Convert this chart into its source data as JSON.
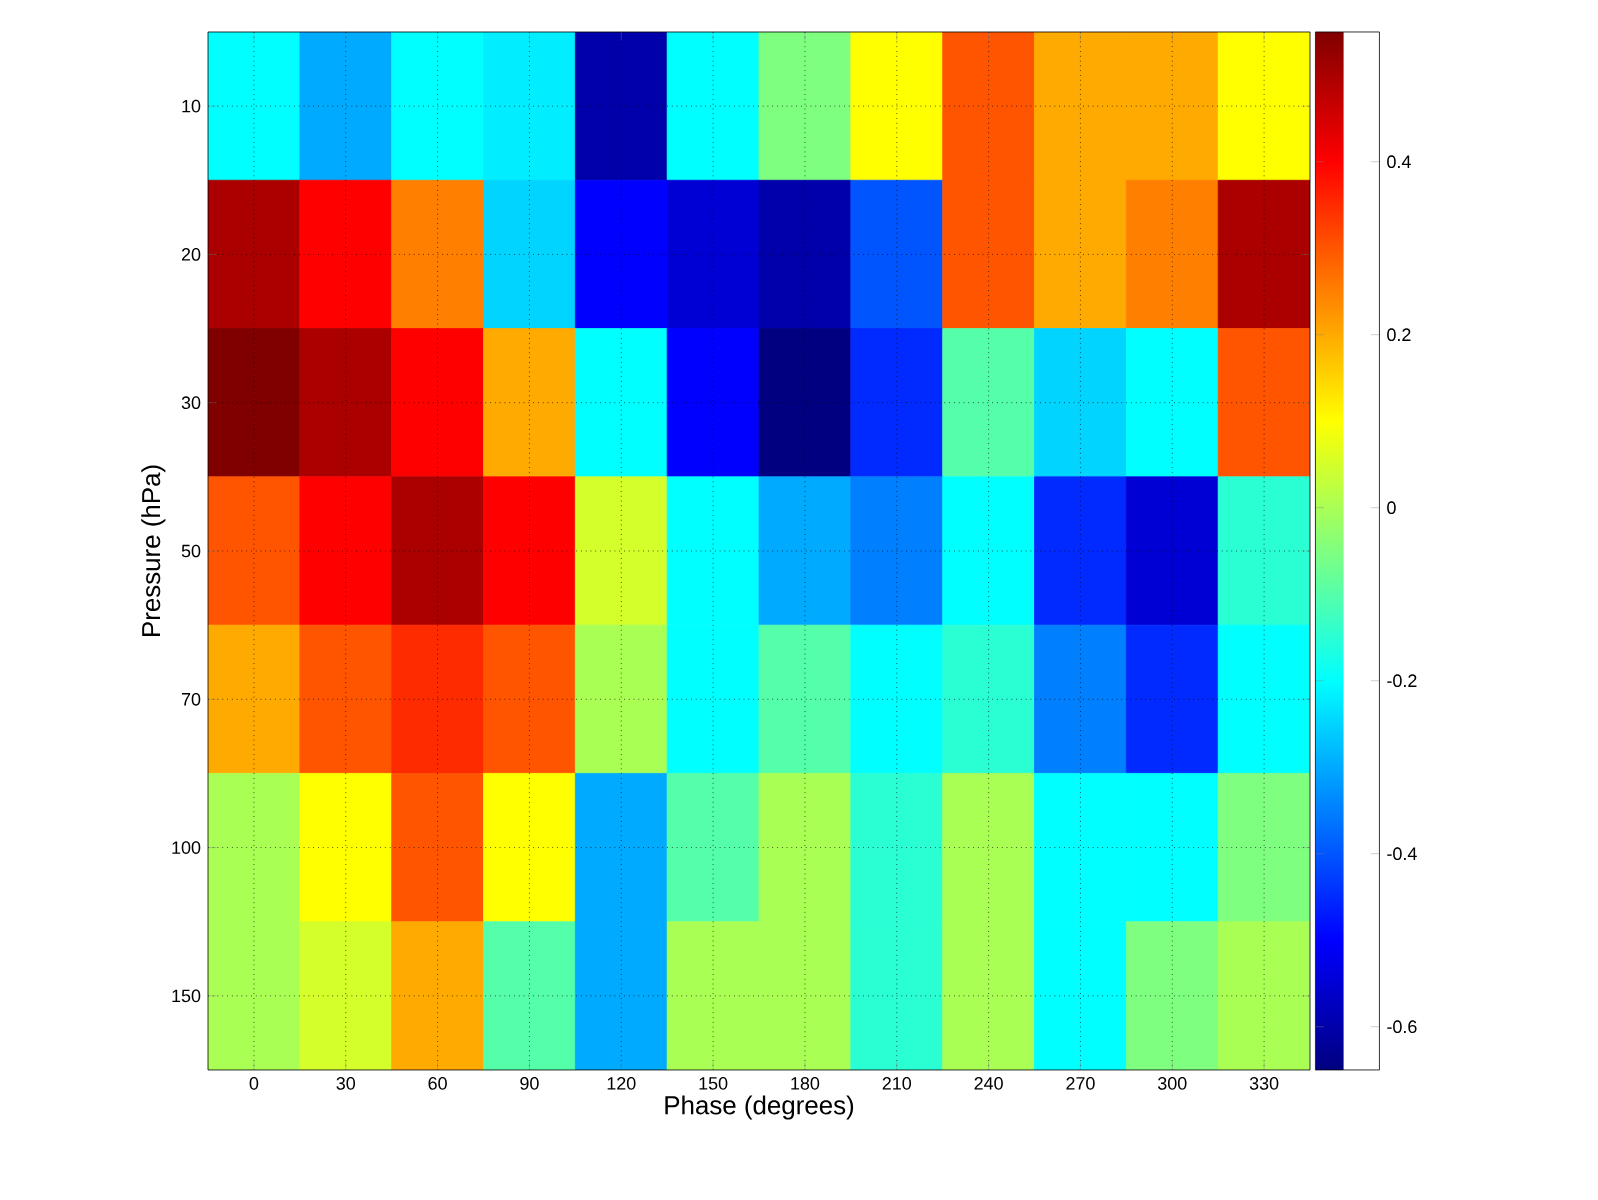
{
  "chart_data": {
    "type": "heatmap",
    "xlabel": "Phase (degrees)",
    "ylabel": "Pressure (hPa)",
    "categories": [
      "0",
      "30",
      "60",
      "90",
      "120",
      "150",
      "180",
      "210",
      "240",
      "270",
      "300",
      "330"
    ],
    "y_categories": [
      "10",
      "20",
      "30",
      "50",
      "70",
      "100",
      "150"
    ],
    "cells": [
      [
        -0.2,
        -0.3,
        -0.2,
        -0.22,
        -0.6,
        -0.2,
        -0.05,
        0.1,
        0.3,
        0.2,
        0.2,
        0.1
      ],
      [
        0.5,
        0.4,
        0.25,
        -0.25,
        -0.5,
        -0.55,
        -0.6,
        -0.4,
        0.3,
        0.2,
        0.25,
        0.5
      ],
      [
        0.55,
        0.5,
        0.4,
        0.2,
        -0.2,
        -0.5,
        -0.65,
        -0.45,
        -0.1,
        -0.25,
        -0.2,
        0.3
      ],
      [
        0.3,
        0.4,
        0.5,
        0.4,
        0.05,
        -0.2,
        -0.3,
        -0.35,
        -0.2,
        -0.45,
        -0.55,
        -0.15
      ],
      [
        0.2,
        0.3,
        0.35,
        0.3,
        0.0,
        -0.2,
        -0.1,
        -0.2,
        -0.15,
        -0.35,
        -0.45,
        -0.2
      ],
      [
        0.0,
        0.1,
        0.3,
        0.1,
        -0.3,
        -0.1,
        0.0,
        -0.15,
        0.0,
        -0.2,
        -0.2,
        -0.05
      ],
      [
        0.0,
        0.05,
        0.2,
        -0.1,
        -0.3,
        0.0,
        0.0,
        -0.15,
        0.0,
        -0.2,
        -0.05,
        0.0
      ]
    ],
    "clim": [
      -0.65,
      0.55
    ],
    "cticks": [
      -0.6,
      -0.4,
      -0.2,
      0,
      0.2,
      0.4
    ],
    "grid": true
  }
}
